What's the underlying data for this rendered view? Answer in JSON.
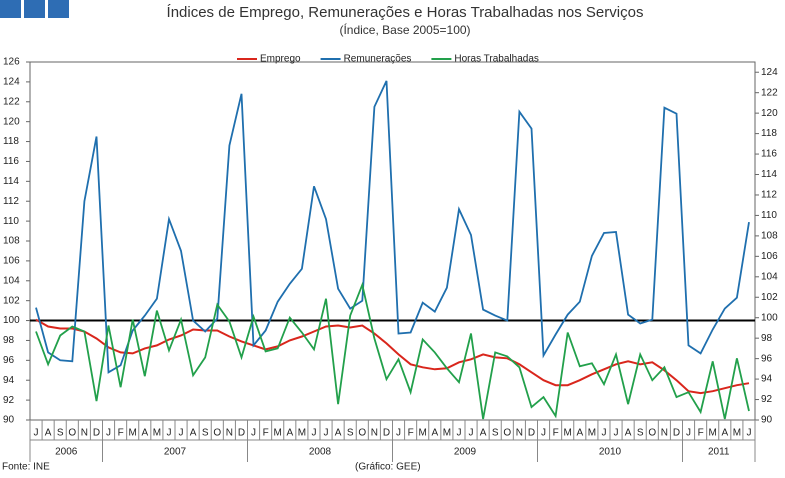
{
  "chart_data": {
    "type": "line",
    "title": "Índices de Emprego, Remunerações e Horas Trabalhadas nos Serviços",
    "subtitle": "(Índice, Base 2005=100)",
    "source": "Fonte: INE",
    "credit": "(Gráfico: GEE)",
    "categories": [
      "J",
      "A",
      "S",
      "O",
      "N",
      "D",
      "J",
      "F",
      "M",
      "A",
      "M",
      "J",
      "J",
      "A",
      "S",
      "O",
      "N",
      "D",
      "J",
      "F",
      "M",
      "A",
      "M",
      "J",
      "J",
      "A",
      "S",
      "O",
      "N",
      "D",
      "J",
      "F",
      "M",
      "A",
      "M",
      "J",
      "J",
      "A",
      "S",
      "O",
      "N",
      "D",
      "J",
      "F",
      "M",
      "A",
      "M",
      "J",
      "J",
      "A",
      "S",
      "O",
      "N",
      "D",
      "J",
      "F",
      "M",
      "A",
      "M",
      "J"
    ],
    "years": [
      "2006",
      "2007",
      "2008",
      "2009",
      "2010",
      "2011"
    ],
    "series": [
      {
        "name": "Emprego",
        "color": "#d9261c",
        "values": [
          100.1,
          99.4,
          99.2,
          99.2,
          98.9,
          98.2,
          97.3,
          96.8,
          96.7,
          97.2,
          97.5,
          98.1,
          98.5,
          99.1,
          99.0,
          99.0,
          98.4,
          97.9,
          97.5,
          97.1,
          97.4,
          98.0,
          98.4,
          98.9,
          99.4,
          99.5,
          99.3,
          99.5,
          98.7,
          97.7,
          96.6,
          95.6,
          95.3,
          95.1,
          95.2,
          95.8,
          96.1,
          96.6,
          96.3,
          96.2,
          95.6,
          94.8,
          94.0,
          93.5,
          93.5,
          94.0,
          94.6,
          95.1,
          95.6,
          95.9,
          95.6,
          95.8,
          95.0,
          94.0,
          92.9,
          92.7,
          92.9,
          93.2,
          93.5,
          93.7
        ]
      },
      {
        "name": "Remunerações",
        "color": "#1f6fae",
        "values": [
          101.3,
          96.8,
          96.0,
          95.9,
          112.0,
          118.5,
          94.8,
          95.5,
          99.0,
          100.5,
          102.2,
          110.2,
          107.0,
          100.0,
          98.9,
          100.2,
          117.6,
          122.8,
          97.5,
          99.0,
          101.9,
          103.7,
          105.2,
          113.5,
          110.2,
          103.2,
          101.2,
          102.0,
          121.5,
          124.1,
          98.7,
          98.8,
          101.8,
          100.9,
          103.3,
          111.2,
          108.6,
          101.1,
          100.5,
          100.0,
          121.0,
          119.3,
          96.5,
          98.6,
          100.6,
          101.9,
          106.5,
          108.8,
          108.9,
          100.6,
          99.7,
          100.1,
          121.4,
          120.8,
          97.5,
          96.7,
          99.1,
          101.2,
          102.3,
          109.9
        ]
      },
      {
        "name": "Horas Trabalhadas",
        "color": "#22a04b",
        "values": [
          98.9,
          95.6,
          98.5,
          99.4,
          98.9,
          91.9,
          99.5,
          93.3,
          100.1,
          94.4,
          101.0,
          97.0,
          100.1,
          94.5,
          96.3,
          101.6,
          99.9,
          96.3,
          100.4,
          96.9,
          97.2,
          100.3,
          98.8,
          97.1,
          102.2,
          91.6,
          100.5,
          103.6,
          98.2,
          94.1,
          96.1,
          92.8,
          98.1,
          96.8,
          95.2,
          93.8,
          98.7,
          90.1,
          96.8,
          96.4,
          95.3,
          91.3,
          92.3,
          90.4,
          98.8,
          95.4,
          95.7,
          93.6,
          96.6,
          91.6,
          96.6,
          94.0,
          95.3,
          92.3,
          92.8,
          90.8,
          95.9,
          90.1,
          96.2,
          90.9
        ]
      }
    ],
    "reference_line": 100,
    "ylim": [
      90,
      126
    ],
    "yticks": [
      90,
      92,
      94,
      96,
      98,
      100,
      102,
      104,
      106,
      108,
      110,
      112,
      114,
      116,
      118,
      120,
      122,
      124,
      126
    ],
    "y2lim": [
      90,
      125
    ],
    "y2ticks": [
      90,
      92,
      94,
      96,
      98,
      100,
      102,
      104,
      106,
      108,
      110,
      112,
      114,
      116,
      118,
      120,
      122,
      124
    ]
  }
}
